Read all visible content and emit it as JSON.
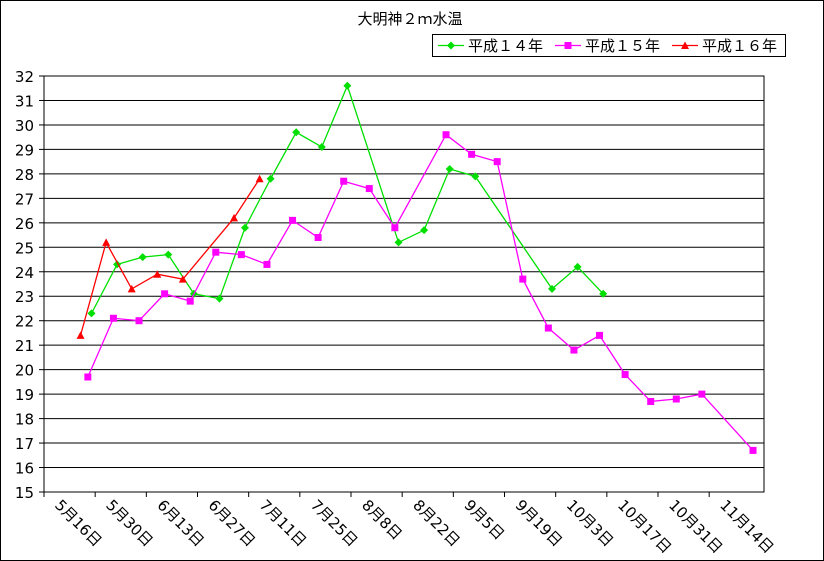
{
  "chart_data": {
    "type": "line",
    "title": "大明神２ｍ水温",
    "xlim": [
      "05-16",
      "11-29"
    ],
    "xticks": [
      {
        "value": "05-16",
        "label": "5月16日"
      },
      {
        "value": "05-30",
        "label": "5月30日"
      },
      {
        "value": "06-13",
        "label": "6月13日"
      },
      {
        "value": "06-27",
        "label": "6月27日"
      },
      {
        "value": "07-11",
        "label": "7月11日"
      },
      {
        "value": "07-25",
        "label": "7月25日"
      },
      {
        "value": "08-08",
        "label": "8月8日"
      },
      {
        "value": "08-22",
        "label": "8月22日"
      },
      {
        "value": "09-05",
        "label": "9月5日"
      },
      {
        "value": "09-19",
        "label": "9月19日"
      },
      {
        "value": "10-03",
        "label": "10月3日"
      },
      {
        "value": "10-17",
        "label": "10月17日"
      },
      {
        "value": "10-31",
        "label": "10月31日"
      },
      {
        "value": "11-14",
        "label": "11月14日"
      }
    ],
    "ylim": [
      15,
      32
    ],
    "yticks": [
      15,
      16,
      17,
      18,
      19,
      20,
      21,
      22,
      23,
      24,
      25,
      26,
      27,
      28,
      29,
      30,
      31,
      32
    ],
    "grid": true,
    "legend": "top-right",
    "series": [
      {
        "name": "平成１４年",
        "color": "#00e000",
        "marker": "diamond",
        "x": [
          "05-29",
          "06-05",
          "06-12",
          "06-19",
          "06-26",
          "07-03",
          "07-10",
          "07-17",
          "07-24",
          "07-31",
          "08-07",
          "08-21",
          "08-28",
          "09-04",
          "09-11",
          "10-02",
          "10-09",
          "10-16"
        ],
        "values": [
          22.3,
          24.3,
          24.6,
          24.7,
          23.1,
          22.9,
          25.8,
          27.8,
          29.7,
          29.1,
          31.6,
          25.2,
          25.7,
          28.2,
          27.9,
          23.3,
          24.2,
          23.1
        ]
      },
      {
        "name": "平成１５年",
        "color": "#ff00ff",
        "marker": "square",
        "x": [
          "05-28",
          "06-04",
          "06-11",
          "06-18",
          "06-25",
          "07-02",
          "07-09",
          "07-16",
          "07-23",
          "07-30",
          "08-06",
          "08-13",
          "08-20",
          "09-03",
          "09-10",
          "09-17",
          "09-24",
          "10-01",
          "10-08",
          "10-15",
          "10-22",
          "10-29",
          "11-05",
          "11-12",
          "11-26"
        ],
        "values": [
          19.7,
          22.1,
          22.0,
          23.1,
          22.8,
          24.8,
          24.7,
          24.3,
          26.1,
          25.4,
          27.7,
          27.4,
          25.8,
          29.6,
          28.8,
          28.5,
          23.7,
          21.7,
          20.8,
          21.4,
          19.8,
          18.7,
          18.8,
          19.0,
          16.7
        ]
      },
      {
        "name": "平成１６年",
        "color": "#ff0000",
        "marker": "triangle",
        "x": [
          "05-26",
          "06-02",
          "06-09",
          "06-16",
          "06-23",
          "07-07",
          "07-14"
        ],
        "values": [
          21.4,
          25.2,
          23.3,
          23.9,
          23.7,
          26.2,
          27.8
        ]
      }
    ]
  }
}
